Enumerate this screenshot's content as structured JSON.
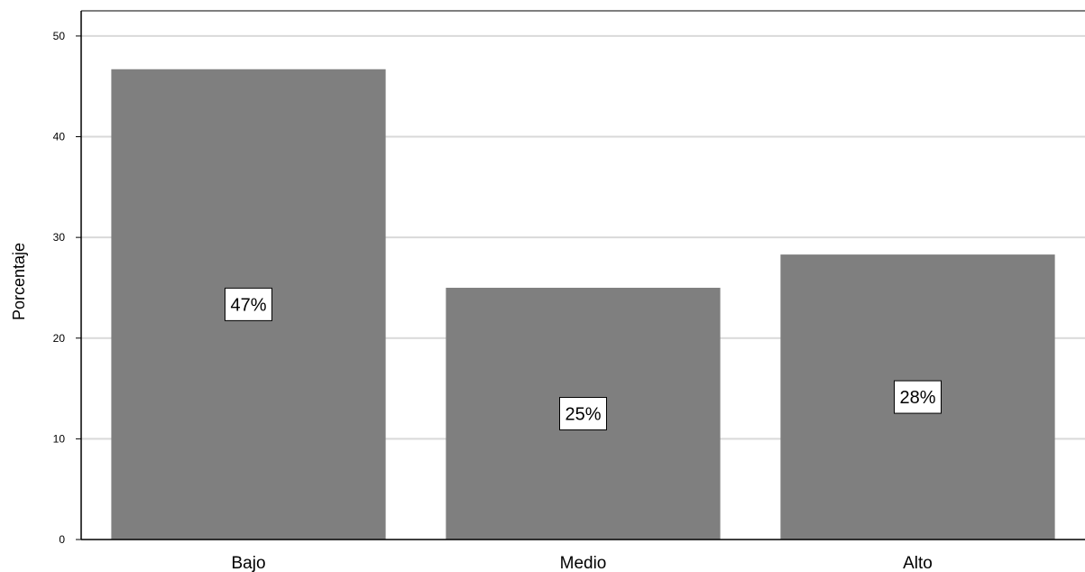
{
  "chart_data": {
    "type": "bar",
    "title": "",
    "xlabel": "",
    "ylabel": "Porcentaje",
    "categories": [
      "Bajo",
      "Medio",
      "Alto"
    ],
    "values": [
      46.7,
      25.0,
      28.3
    ],
    "data_labels": [
      "47%",
      "25%",
      "28%"
    ],
    "ylim": [
      0,
      52.5
    ],
    "yticks": [
      0,
      10,
      20,
      30,
      40,
      50
    ],
    "grid": true,
    "legend": "none",
    "colors": {
      "bar": "#7f7f7f",
      "grid": "#d9d9d9",
      "axis": "#000000",
      "label_box_fill": "#ffffff",
      "label_box_stroke": "#000000"
    }
  }
}
